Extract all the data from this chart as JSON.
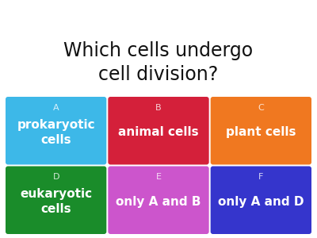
{
  "title": "Which cells undergo\ncell division?",
  "title_fontsize": 17,
  "background_color": "#ffffff",
  "cards": [
    {
      "letter": "A",
      "text": "prokaryotic\ncells",
      "color": "#3db8e8",
      "row": 0,
      "col": 0
    },
    {
      "letter": "B",
      "text": "animal cells",
      "color": "#d4203a",
      "row": 0,
      "col": 1
    },
    {
      "letter": "C",
      "text": "plant cells",
      "color": "#f07820",
      "row": 0,
      "col": 2
    },
    {
      "letter": "D",
      "text": "eukaryotic\ncells",
      "color": "#1a8c2a",
      "row": 1,
      "col": 0
    },
    {
      "letter": "E",
      "text": "only A and B",
      "color": "#cc55cc",
      "row": 1,
      "col": 1
    },
    {
      "letter": "F",
      "text": "only A and D",
      "color": "#3535cc",
      "row": 1,
      "col": 2
    }
  ],
  "card_text_color": "#ffffff",
  "letter_fontsize": 8,
  "answer_fontsize": 11,
  "fig_width": 4.0,
  "fig_height": 3.0,
  "dpi": 100
}
